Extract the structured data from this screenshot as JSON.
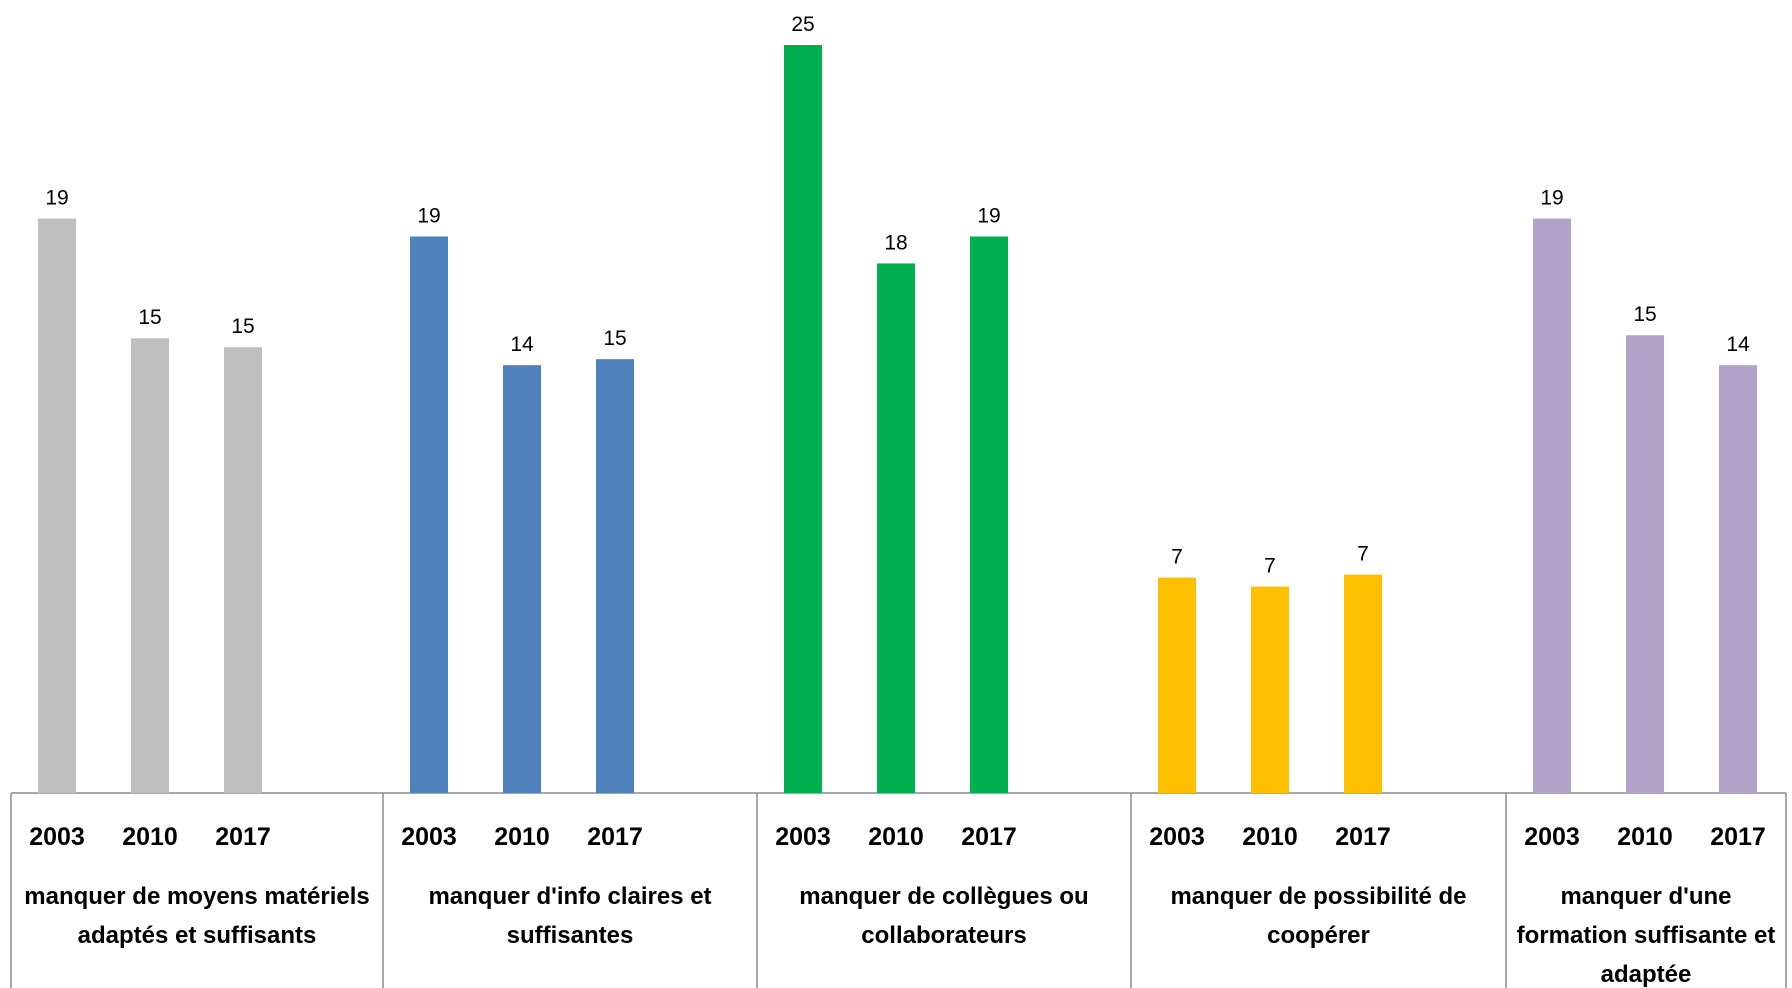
{
  "chart_data": {
    "type": "grouped_bar",
    "ylim": [
      0,
      25
    ],
    "groups": [
      {
        "label": "manquer de moyens matériels adaptés et suffisants",
        "color": "#bfbfbf",
        "categories": [
          "2003",
          "2010",
          "2017"
        ],
        "values": [
          19.2,
          15.2,
          14.9
        ],
        "value_labels": [
          "19",
          "15",
          "15"
        ]
      },
      {
        "label": "manquer d'info claires et suffisantes",
        "color": "#4f81bd",
        "categories": [
          "2003",
          "2010",
          "2017"
        ],
        "values": [
          18.6,
          14.3,
          14.5
        ],
        "value_labels": [
          "19",
          "14",
          "15"
        ]
      },
      {
        "label": "manquer de collègues ou collaborateurs",
        "color": "#00b050",
        "categories": [
          "2003",
          "2010",
          "2017"
        ],
        "values": [
          25.0,
          17.7,
          18.6
        ],
        "value_labels": [
          "25",
          "18",
          "19"
        ]
      },
      {
        "label": "manquer de possibilité de coopérer",
        "color": "#ffc000",
        "categories": [
          "2003",
          "2010",
          "2017"
        ],
        "values": [
          7.2,
          6.9,
          7.3
        ],
        "value_labels": [
          "7",
          "7",
          "7"
        ]
      },
      {
        "label": "manquer d'une formation suffisante et adaptée",
        "color": "#b3a2c7",
        "categories": [
          "2003",
          "2010",
          "2017"
        ],
        "values": [
          19.2,
          15.3,
          14.3
        ],
        "value_labels": [
          "19",
          "15",
          "14"
        ]
      }
    ]
  }
}
